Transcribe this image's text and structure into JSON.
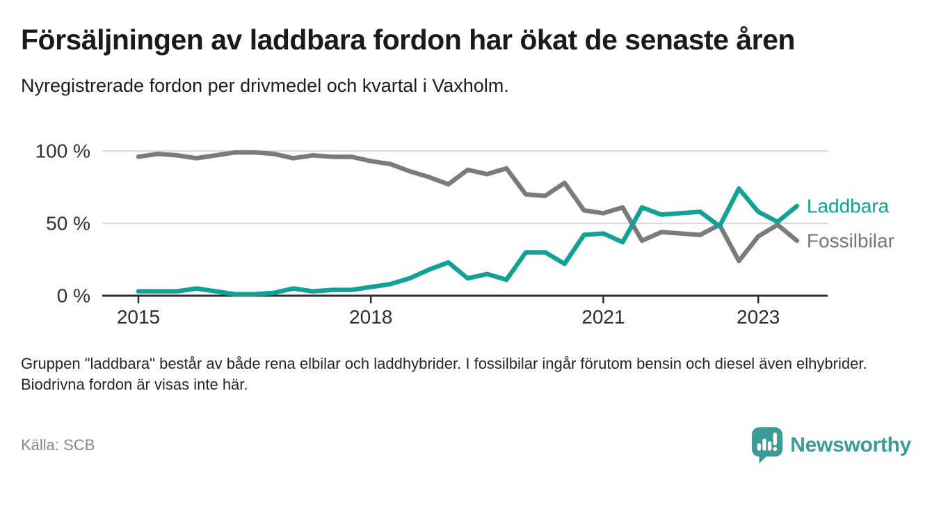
{
  "header": {
    "title": "Försäljningen av laddbara fordon har ökat de senaste åren",
    "subtitle": "Nyregistrerade fordon per drivmedel och kvartal i Vaxholm."
  },
  "chart_data": {
    "type": "line",
    "x_unit": "quarter",
    "x": [
      "2015 Q1",
      "2015 Q2",
      "2015 Q3",
      "2015 Q4",
      "2016 Q1",
      "2016 Q2",
      "2016 Q3",
      "2016 Q4",
      "2017 Q1",
      "2017 Q2",
      "2017 Q3",
      "2017 Q4",
      "2018 Q1",
      "2018 Q2",
      "2018 Q3",
      "2018 Q4",
      "2019 Q1",
      "2019 Q2",
      "2019 Q3",
      "2019 Q4",
      "2020 Q1",
      "2020 Q2",
      "2020 Q3",
      "2020 Q4",
      "2021 Q1",
      "2021 Q2",
      "2021 Q3",
      "2021 Q4",
      "2022 Q1",
      "2022 Q2",
      "2022 Q3",
      "2022 Q4",
      "2023 Q1",
      "2023 Q2",
      "2023 Q3"
    ],
    "series": [
      {
        "name": "Laddbara",
        "color": "#12a195",
        "values": [
          3,
          3,
          3,
          5,
          3,
          1,
          1,
          2,
          5,
          3,
          4,
          4,
          6,
          8,
          12,
          18,
          23,
          12,
          15,
          11,
          30,
          30,
          22,
          42,
          43,
          37,
          61,
          56,
          57,
          58,
          48,
          74,
          58,
          51,
          62
        ]
      },
      {
        "name": "Fossilbilar",
        "color": "#7b7b7b",
        "values": [
          96,
          98,
          97,
          95,
          97,
          99,
          99,
          98,
          95,
          97,
          96,
          96,
          93,
          91,
          86,
          82,
          77,
          87,
          84,
          88,
          70,
          69,
          78,
          59,
          57,
          61,
          38,
          44,
          43,
          42,
          49,
          24,
          41,
          49,
          38
        ]
      }
    ],
    "xticks": [
      "2015",
      "2018",
      "2021",
      "2023"
    ],
    "yticks": [
      "0 %",
      "50 %",
      "100 %"
    ],
    "ylim": [
      0,
      100
    ],
    "grid": "horizontal",
    "legend": "line-end-labels",
    "colors": {
      "axis": "#2e2e2e",
      "grid": "#d9d9d9",
      "tick_label": "#2f2f2f",
      "legend_gray": "#757575"
    }
  },
  "footer": {
    "note": "Gruppen \"laddbara\" består av både rena elbilar och laddhybrider. I fossilbilar ingår förutom bensin och diesel även elhybrider. Biodrivna fordon är visas inte här.",
    "source": "Källa: SCB",
    "brand": "Newsworthy"
  }
}
